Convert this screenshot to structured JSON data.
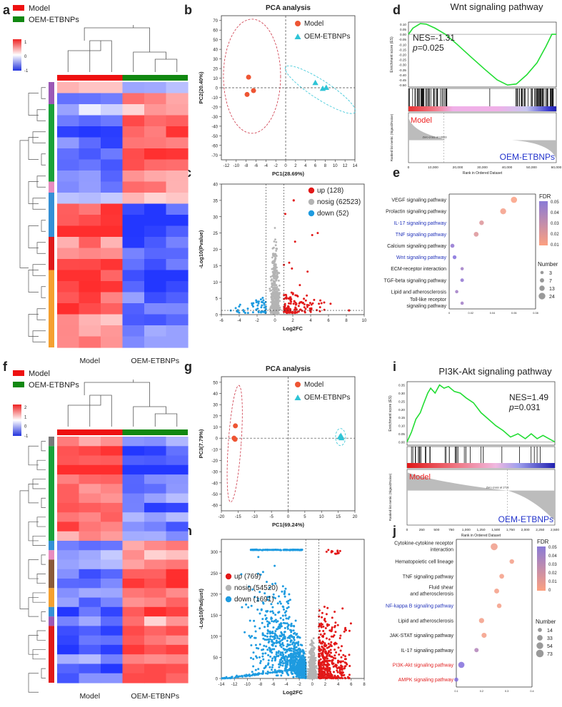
{
  "figure": {
    "panel_labels": [
      "a",
      "b",
      "c",
      "d",
      "e",
      "f",
      "g",
      "h",
      "i",
      "j"
    ],
    "groups": {
      "model": "Model",
      "treated": "OEM-ETBNPs"
    },
    "colors": {
      "model": "#ee1111",
      "treated": "#118811",
      "up": "#e21818",
      "down": "#1e9be0",
      "nosig": "#b4b4b4",
      "tri": "#2ec4d6",
      "pca_model": "#ee5533",
      "enrich_line": "#22dd33"
    }
  },
  "chart_data": [
    {
      "id": "a",
      "type": "heatmap",
      "title": "",
      "legend": [
        "Model",
        "OEM-ETBNPs"
      ],
      "colorbar_ticks": [
        "1",
        "0",
        "-1"
      ],
      "xlabels": [
        "Model",
        "OEM-ETBNPs"
      ],
      "n_rows": 24,
      "n_cols": 6,
      "module_colors": [
        "purple",
        "green",
        "pink",
        "blue",
        "red",
        "orange"
      ]
    },
    {
      "id": "b",
      "type": "scatter",
      "title": "PCA analysis",
      "xlabel": "PC1(28.69%)",
      "ylabel": "PC2(20.40%)",
      "xlim": [
        -13,
        14
      ],
      "ylim": [
        -75,
        75
      ],
      "xticks": [
        -12,
        -10,
        -8,
        -6,
        -4,
        -2,
        0,
        2,
        4,
        6,
        8,
        10,
        12,
        14
      ],
      "yticks": [
        70,
        60,
        50,
        40,
        30,
        20,
        10,
        0,
        -10,
        -20,
        -30,
        -40,
        -50,
        -60,
        -70
      ],
      "legend": [
        "Model",
        "OEM-ETBNPs"
      ],
      "series": [
        {
          "name": "Model",
          "points": [
            [
              -7.5,
              11
            ],
            [
              -7.8,
              -7
            ],
            [
              -6.5,
              -3
            ]
          ]
        },
        {
          "name": "OEM-ETBNPs",
          "points": [
            [
              6,
              5
            ],
            [
              7.5,
              -1
            ],
            [
              8.2,
              0
            ]
          ]
        }
      ]
    },
    {
      "id": "c",
      "type": "scatter",
      "title": "",
      "xlabel": "Log2FC",
      "ylabel": "-Log10(Pvalue)",
      "xlim": [
        -6,
        10
      ],
      "ylim": [
        0,
        40
      ],
      "xticks": [
        -6,
        -4,
        -2,
        0,
        2,
        4,
        6,
        8,
        10
      ],
      "yticks": [
        0,
        5,
        10,
        15,
        20,
        25,
        30,
        35,
        40
      ],
      "legend": [
        "up (128)",
        "nosig (62523)",
        "down (52)"
      ]
    },
    {
      "id": "d",
      "type": "line",
      "title": "Wnt signaling pathway",
      "ylabel": "Enrichment score (ES)",
      "xlabel": "Rank in Ordered Dataset",
      "yticks": [
        "0.10",
        "0.05",
        "0.00",
        "-0.05",
        "-0.10",
        "-0.15",
        "-0.20",
        "-0.25",
        "-0.30",
        "-0.35",
        "-0.40",
        "-0.45",
        "-0.50"
      ],
      "xticks": [
        "0",
        "10,000",
        "20,000",
        "30,000",
        "40,000",
        "50,000",
        "60,000"
      ],
      "nes": "NES=-1.31",
      "pvalue": "p=0.025",
      "p_label": "p",
      "p_value": "=0.025",
      "model_label": "Model",
      "treated_label": "OEM-ETBNPs",
      "zero_cross": "Zero cross at 13983",
      "metric_label": "Ranked list metric (Signal2Noise)",
      "es_curve": [
        [
          0,
          0
        ],
        [
          3,
          0.06
        ],
        [
          8,
          0.105
        ],
        [
          12,
          0.1
        ],
        [
          18,
          0.06
        ],
        [
          25,
          0.0
        ],
        [
          33,
          -0.1
        ],
        [
          42,
          -0.22
        ],
        [
          52,
          -0.35
        ],
        [
          60,
          -0.45
        ],
        [
          67,
          -0.5
        ],
        [
          73,
          -0.49
        ],
        [
          80,
          -0.4
        ],
        [
          87,
          -0.28
        ],
        [
          93,
          -0.12
        ],
        [
          97,
          0.0
        ],
        [
          100,
          0.0
        ]
      ]
    },
    {
      "id": "e",
      "type": "scatter",
      "title": "",
      "categories": [
        "VEGF signaling pathway",
        "Prolactin signaling pathway",
        "IL-17 signaling pathway",
        "TNF signaling pathway",
        "Calcium signaling pathway",
        "Wnt signaling pathway",
        "ECM-receptor interaction",
        "TGF-beta signaling pathway",
        "Lipid and atherosclerosis",
        "Toll-like receptor signaling pathway"
      ],
      "highlight": [
        false,
        false,
        true,
        true,
        false,
        true,
        false,
        false,
        false,
        false
      ],
      "gene_ratio": [
        0.06,
        0.05,
        0.03,
        0.025,
        0.003,
        0.005,
        0.012,
        0.012,
        0.007,
        0.012
      ],
      "fdr": [
        0.01,
        0.012,
        0.02,
        0.02,
        0.045,
        0.05,
        0.04,
        0.045,
        0.04,
        0.04
      ],
      "number": [
        20,
        18,
        9,
        10,
        6,
        5,
        3,
        4,
        3,
        3
      ],
      "xticks": [
        "0",
        "0.02",
        "0.04",
        "0.06",
        "0.08"
      ],
      "xlim": [
        0,
        0.08
      ],
      "fdr_label": "FDR",
      "fdr_ticks": [
        "0.05",
        "0.04",
        "0.03",
        "0.02",
        "0.01"
      ],
      "number_label": "Number",
      "number_ticks": [
        "3",
        "7",
        "13",
        "24"
      ]
    },
    {
      "id": "f",
      "type": "heatmap",
      "title": "",
      "legend": [
        "Model",
        "OEM-ETBNPs"
      ],
      "colorbar_ticks": [
        "2",
        "1",
        "0",
        "-1"
      ],
      "xlabels": [
        "Model",
        "OEM-ETBNPs"
      ],
      "n_rows": 26,
      "n_cols": 6
    },
    {
      "id": "g",
      "type": "scatter",
      "title": "PCA analysis",
      "xlabel": "PC1(69.24%)",
      "ylabel": "PC3(7.79%)",
      "xlim": [
        -20,
        20
      ],
      "ylim": [
        -65,
        55
      ],
      "xticks": [
        -20,
        -15,
        -10,
        -5,
        0,
        5,
        10,
        15,
        20
      ],
      "yticks": [
        50,
        40,
        30,
        20,
        10,
        0,
        -10,
        -20,
        -30,
        -40,
        -50,
        -60
      ],
      "legend": [
        "Model",
        "OEM-ETBNPs"
      ],
      "series": [
        {
          "name": "Model",
          "points": [
            [
              -15.8,
              11
            ],
            [
              -16.2,
              0
            ],
            [
              -15.9,
              -1
            ]
          ]
        },
        {
          "name": "OEM-ETBNPs",
          "points": [
            [
              15.5,
              1
            ],
            [
              16,
              0
            ],
            [
              15.8,
              2
            ]
          ]
        }
      ]
    },
    {
      "id": "h",
      "type": "scatter",
      "title": "",
      "xlabel": "Log2FC",
      "ylabel": "-Log10(Padjust)",
      "xlim": [
        -14,
        8
      ],
      "ylim": [
        0,
        330
      ],
      "xticks": [
        -14,
        -12,
        -10,
        -8,
        -6,
        -4,
        -2,
        0,
        2,
        4,
        6,
        8
      ],
      "yticks": [
        0,
        50,
        100,
        150,
        200,
        250,
        300
      ],
      "legend": [
        "up (769)",
        "nosig (54520)",
        "down (1691)"
      ]
    },
    {
      "id": "i",
      "type": "line",
      "title": "PI3K-Akt signaling pathway",
      "ylabel": "Enrichment score (ES)",
      "xlabel": "Rank in Ordered Dataset",
      "yticks": [
        "0.35",
        "0.30",
        "0.25",
        "0.20",
        "0.15",
        "0.10",
        "0.05",
        "0.00"
      ],
      "xticks": [
        "0",
        "250",
        "500",
        "750",
        "1,000",
        "1,250",
        "1,500",
        "1,750",
        "2,000",
        "2,250",
        "2,500"
      ],
      "nes": "NES=1.49",
      "pvalue": "p=0.031",
      "p_label": "p",
      "p_value": "=0.031",
      "model_label": "Model",
      "treated_label": "OEM-ETBNPs",
      "zero_cross": "Zero cross at 1713",
      "metric_label": "Ranked list metric (Signal2Noise)",
      "es_curve": [
        [
          0,
          0
        ],
        [
          3,
          0.06
        ],
        [
          6,
          0.14
        ],
        [
          9,
          0.18
        ],
        [
          11,
          0.23
        ],
        [
          14,
          0.3
        ],
        [
          16,
          0.33
        ],
        [
          19,
          0.3
        ],
        [
          22,
          0.35
        ],
        [
          25,
          0.33
        ],
        [
          28,
          0.34
        ],
        [
          32,
          0.31
        ],
        [
          36,
          0.3
        ],
        [
          40,
          0.27
        ],
        [
          45,
          0.24
        ],
        [
          50,
          0.18
        ],
        [
          55,
          0.14
        ],
        [
          60,
          0.1
        ],
        [
          65,
          0.07
        ],
        [
          70,
          0.03
        ],
        [
          75,
          0.05
        ],
        [
          80,
          0.02
        ],
        [
          84,
          0.05
        ],
        [
          88,
          0.02
        ],
        [
          92,
          0.04
        ],
        [
          96,
          0.02
        ],
        [
          100,
          0.0
        ]
      ]
    },
    {
      "id": "j",
      "type": "scatter",
      "title": "",
      "categories": [
        "Cytokine-cytokine receptor interaction",
        "Hematopoietic cell lineage",
        "TNF signaling pathway",
        "Fluid shear and atherosclerosis",
        "NF-kappa B signaling pathway",
        "Lipid and atherosclerosis",
        "JAK-STAT signaling pathway",
        "IL-17 signaling pathway",
        "PI3K-Akt signaling pathway",
        "AMPK signaling pathway"
      ],
      "highlight_color": [
        "",
        "",
        "",
        "",
        "blue",
        "",
        "",
        "",
        "red",
        "red"
      ],
      "gene_ratio": [
        0.25,
        0.32,
        0.28,
        0.26,
        0.27,
        0.2,
        0.21,
        0.18,
        0.12,
        0.1
      ],
      "fdr": [
        0.004,
        0.003,
        0.002,
        0.002,
        0.002,
        0.003,
        0.002,
        0.03,
        0.05,
        0.05
      ],
      "number": [
        60,
        20,
        22,
        24,
        20,
        28,
        26,
        16,
        45,
        14
      ],
      "xticks": [
        "0.1",
        "0.2",
        "0.3",
        "0.4"
      ],
      "xlim": [
        0.1,
        0.4
      ],
      "fdr_label": "FDR",
      "fdr_ticks": [
        "0.05",
        "0.04",
        "0.03",
        "0.02",
        "0.01",
        "0"
      ],
      "number_label": "Number",
      "number_ticks": [
        "14",
        "33",
        "54",
        "73"
      ]
    }
  ]
}
